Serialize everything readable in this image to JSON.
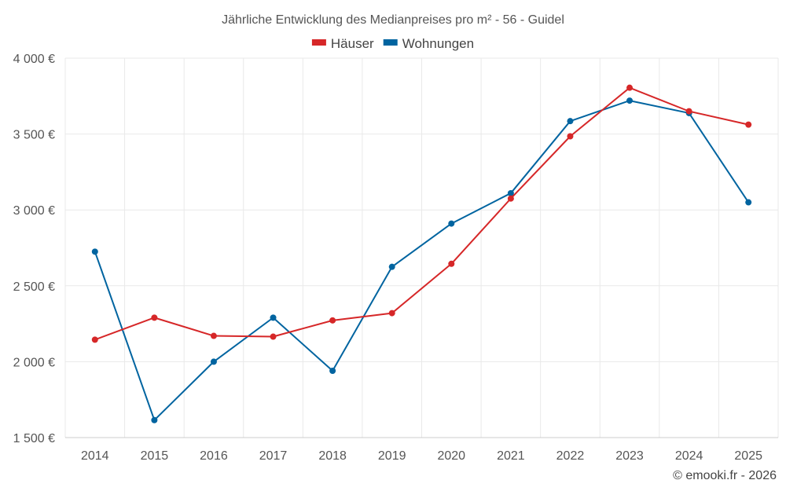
{
  "chart_data": {
    "type": "line",
    "title": "Jährliche Entwicklung des Medianpreises pro m² - 56 - Guidel",
    "categories": [
      "2014",
      "2015",
      "2016",
      "2017",
      "2018",
      "2019",
      "2020",
      "2021",
      "2022",
      "2023",
      "2024",
      "2025"
    ],
    "series": [
      {
        "name": "Häuser",
        "color": "#d62728",
        "values": [
          2145,
          2290,
          2170,
          2165,
          2272,
          2320,
          2645,
          3075,
          3485,
          3805,
          3650,
          3562
        ]
      },
      {
        "name": "Wohnungen",
        "color": "#0064a0",
        "values": [
          2725,
          1615,
          2000,
          2290,
          1940,
          2625,
          2910,
          3110,
          3585,
          3720,
          3638,
          3050
        ]
      }
    ],
    "ylim": [
      1500,
      4000
    ],
    "yticks": [
      1500,
      2000,
      2500,
      3000,
      3500,
      4000
    ],
    "ytick_labels": [
      "1 500 €",
      "2 000 €",
      "2 500 €",
      "3 000 €",
      "3 500 €",
      "4 000 €"
    ],
    "xlabel": "",
    "ylabel": "",
    "grid": true,
    "legend_position": "top-center",
    "credit": "© emooki.fr - 2026"
  }
}
